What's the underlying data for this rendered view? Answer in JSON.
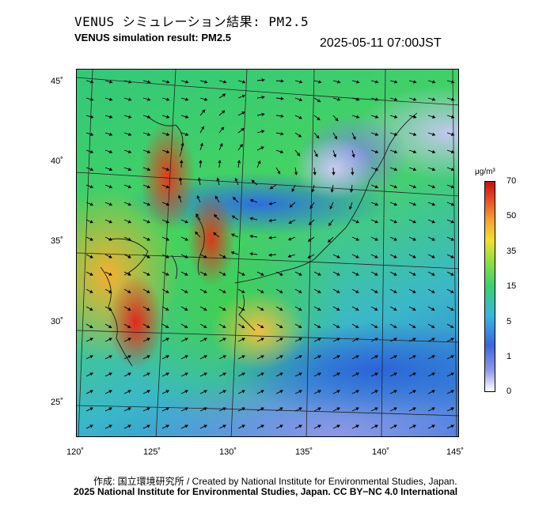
{
  "header": {
    "title_jp": "VENUS シミュレーション結果: PM2.5",
    "title_en": "VENUS simulation result: PM2.5",
    "timestamp": "2025-05-11 07:00JST"
  },
  "map": {
    "lat_labels": [
      "45˚",
      "40˚",
      "35˚",
      "30˚",
      "25˚"
    ],
    "lon_labels": [
      "120˚",
      "125˚",
      "130˚",
      "135˚",
      "140˚",
      "145˚"
    ]
  },
  "legend": {
    "unit": "μg/m³",
    "labels": [
      "70",
      "50",
      "35",
      "15",
      "5",
      "1",
      "0"
    ]
  },
  "footer": {
    "credit_line_1": "作成: 国立環境研究所 / Created by National Institute for Environmental Studies, Japan.",
    "credit_line_2": "2025 National Institute for Environmental Studies, Japan. CC BY−NC 4.0 International"
  },
  "colors": {
    "high": "#c81010",
    "mid": "#3ad070",
    "low": "#3a66de",
    "none": "#ffffff"
  }
}
